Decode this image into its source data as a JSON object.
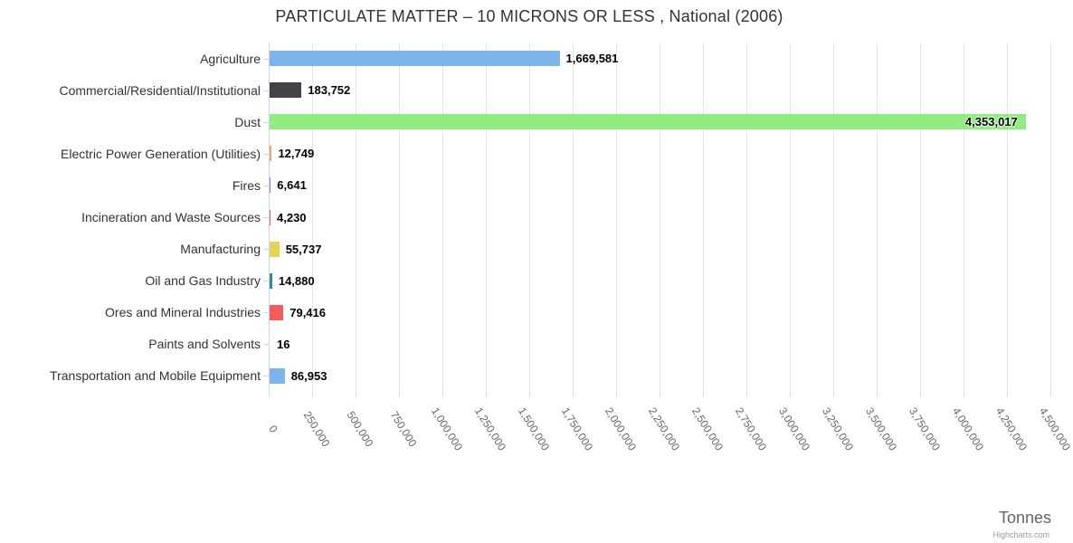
{
  "header": {
    "title": "PARTICULATE MATTER – 10 MICRONS OR LESS , National (2006)"
  },
  "footer": {
    "axis_title": "Tonnes",
    "credits": "Highcharts.com"
  },
  "colors": {
    "grid": "#e6e6e6",
    "axis": "#ccd6eb",
    "title": "#333333",
    "category_label": "#333333",
    "tick_label": "#666666",
    "data_label": "#000000",
    "axis_title": "#666666",
    "credits": "#999999"
  },
  "chart_data": {
    "type": "bar",
    "orientation": "horizontal",
    "title": "PARTICULATE MATTER – 10 MICRONS OR LESS , National (2006)",
    "xlabel": "Tonnes",
    "grid": true,
    "legend": false,
    "xlim": [
      0,
      4500000
    ],
    "x_tick_step": 250000,
    "x_tick_labels": [
      "0",
      "250,000",
      "500,000",
      "750,000",
      "1,000,000",
      "1,250,000",
      "1,500,000",
      "1,750,000",
      "2,000,000",
      "2,250,000",
      "2,500,000",
      "2,750,000",
      "3,000,000",
      "3,250,000",
      "3,500,000",
      "3,750,000",
      "4,000,000",
      "4,250,000",
      "4,500,000"
    ],
    "categories": [
      "Agriculture",
      "Commercial/Residential/Institutional",
      "Dust",
      "Electric Power Generation (Utilities)",
      "Fires",
      "Incineration and Waste Sources",
      "Manufacturing",
      "Oil and Gas Industry",
      "Ores and Mineral Industries",
      "Paints and Solvents",
      "Transportation and Mobile Equipment"
    ],
    "values": [
      1669581,
      183752,
      4353017,
      12749,
      6641,
      4230,
      55737,
      14880,
      79416,
      16,
      86953
    ],
    "value_labels": [
      "1,669,581",
      "183,752",
      "4,353,017",
      "12,749",
      "6,641",
      "4,230",
      "55,737",
      "14,880",
      "79,416",
      "16",
      "86,953"
    ],
    "bar_colors": [
      "#7cb5ec",
      "#434348",
      "#90ed7d",
      "#f7a35c",
      "#8085e9",
      "#f15c80",
      "#e4d354",
      "#2b908f",
      "#f45b5b",
      "#91e8e1",
      "#7cb5ec"
    ]
  }
}
